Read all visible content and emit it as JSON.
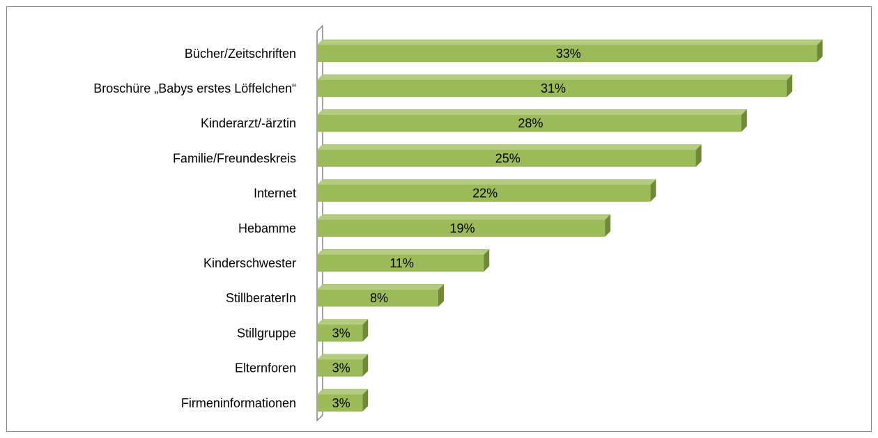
{
  "chart_data": {
    "type": "bar",
    "orientation": "horizontal",
    "categories": [
      "Bücher/Zeitschriften",
      "Broschüre „Babys erstes Löffelchen“",
      "Kinderarzt/-ärztin",
      "Familie/Freundeskreis",
      "Internet",
      "Hebamme",
      "Kinderschwester",
      "StillberaterIn",
      "Stillgruppe",
      "Elternforen",
      "Firmeninformationen"
    ],
    "values": [
      33,
      31,
      28,
      25,
      22,
      19,
      11,
      8,
      3,
      3,
      3
    ],
    "value_labels": [
      "33%",
      "31%",
      "28%",
      "25%",
      "22%",
      "19%",
      "11%",
      "8%",
      "3%",
      "3%",
      "3%"
    ],
    "color": "#9bbb59",
    "xlim": [
      0,
      35
    ]
  }
}
